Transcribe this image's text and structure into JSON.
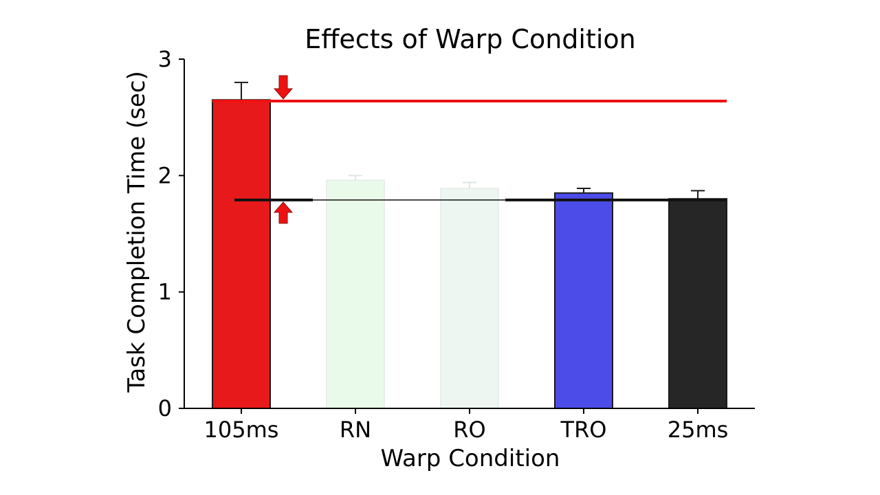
{
  "chart_data": {
    "type": "bar",
    "title": "Effects of Warp Condition",
    "xlabel": "Warp Condition",
    "ylabel": "Task Completion Time (sec)",
    "ylim": [
      0,
      3
    ],
    "yticks": [
      "0",
      "1",
      "2",
      "3"
    ],
    "categories": [
      "105ms",
      "RN",
      "RO",
      "TRO",
      "25ms"
    ],
    "values": [
      2.65,
      1.96,
      1.89,
      1.85,
      1.8
    ],
    "errors": [
      0.15,
      0.04,
      0.05,
      0.04,
      0.07
    ],
    "bar_colors": [
      "#e8191b",
      "#eafaea",
      "#eef6f2",
      "#4c4ce8",
      "#262626"
    ],
    "bar_faded": [
      false,
      true,
      true,
      false,
      false
    ],
    "reference_lines": [
      {
        "value": 2.64,
        "color": "#ee1111"
      },
      {
        "value": 1.79,
        "color": "#111111"
      }
    ],
    "annotations": [
      {
        "type": "arrow-down",
        "at": 2.64,
        "color": "#ee1111"
      },
      {
        "type": "arrow-up",
        "at": 1.79,
        "color": "#ee1111"
      }
    ],
    "grid": false,
    "legend": "none"
  }
}
